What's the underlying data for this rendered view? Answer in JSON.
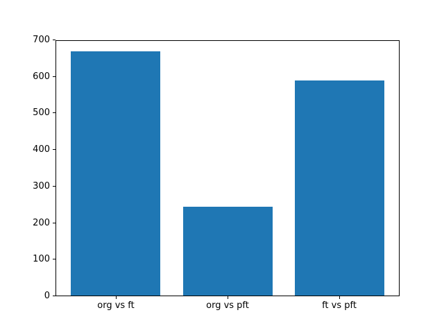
{
  "chart_data": {
    "type": "bar",
    "categories": [
      "org vs ft",
      "org vs pft",
      "ft vs pft"
    ],
    "values": [
      670,
      245,
      590
    ],
    "title": "",
    "xlabel": "",
    "ylabel": "",
    "ylim": [
      0,
      700
    ],
    "yticks": [
      0,
      100,
      200,
      300,
      400,
      500,
      600,
      700
    ],
    "bar_color": "#1f77b4",
    "background_color": "#ffffff",
    "axis_color": "#000000",
    "grid": false,
    "legend": "none"
  }
}
